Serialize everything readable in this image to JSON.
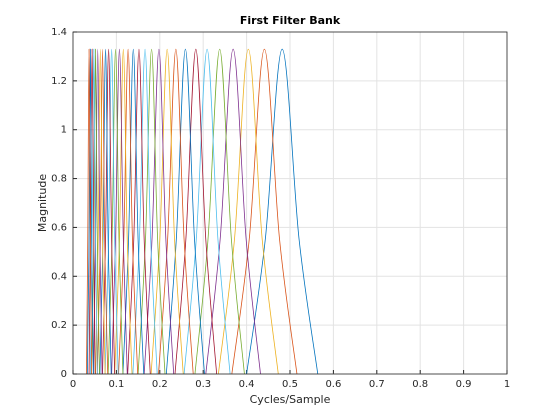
{
  "chart_data": {
    "type": "line",
    "title": "First Filter Bank",
    "xlabel": "Cycles/Sample",
    "ylabel": "Magnitude",
    "xlim": [
      0,
      1
    ],
    "xticks": [
      0,
      0.1,
      0.2,
      0.3,
      0.4,
      0.5,
      0.6,
      0.7,
      0.8,
      0.9,
      1
    ],
    "ylim": [
      0,
      1.4
    ],
    "yticks": [
      0,
      0.2,
      0.4,
      0.6,
      0.8,
      1,
      1.2,
      1.4
    ],
    "grid": true,
    "series": [
      {
        "color": "#0072BD",
        "x": [
          0.4,
          0.443,
          0.482,
          0.521,
          0.564
        ],
        "values": [
          0,
          0.55,
          1.33,
          0.55,
          0
        ]
      },
      {
        "color": "#D95319",
        "x": [
          0.366,
          0.406,
          0.441,
          0.476,
          0.516
        ],
        "values": [
          0,
          0.55,
          1.33,
          0.55,
          0
        ]
      },
      {
        "color": "#EDB120",
        "x": [
          0.335,
          0.372,
          0.404,
          0.436,
          0.473
        ],
        "values": [
          0,
          0.55,
          1.33,
          0.55,
          0
        ]
      },
      {
        "color": "#7E2F8E",
        "x": [
          0.306,
          0.339,
          0.369,
          0.399,
          0.432
        ],
        "values": [
          0,
          0.55,
          1.33,
          0.55,
          0
        ]
      },
      {
        "color": "#77AC30",
        "x": [
          0.281,
          0.311,
          0.338,
          0.365,
          0.395
        ],
        "values": [
          0,
          0.55,
          1.33,
          0.55,
          0
        ]
      },
      {
        "color": "#4DBEEE",
        "x": [
          0.256,
          0.284,
          0.309,
          0.334,
          0.362
        ],
        "values": [
          0,
          0.55,
          1.33,
          0.55,
          0
        ]
      },
      {
        "color": "#A2142F",
        "x": [
          0.235,
          0.26,
          0.283,
          0.306,
          0.331
        ],
        "values": [
          0,
          0.55,
          1.33,
          0.55,
          0
        ]
      },
      {
        "color": "#0072BD",
        "x": [
          0.215,
          0.238,
          0.259,
          0.28,
          0.303
        ],
        "values": [
          0,
          0.55,
          1.33,
          0.55,
          0
        ]
      },
      {
        "color": "#D95319",
        "x": [
          0.197,
          0.218,
          0.237,
          0.256,
          0.277
        ],
        "values": [
          0,
          0.55,
          1.33,
          0.55,
          0
        ]
      },
      {
        "color": "#EDB120",
        "x": [
          0.18,
          0.2,
          0.217,
          0.234,
          0.254
        ],
        "values": [
          0,
          0.55,
          1.33,
          0.55,
          0
        ]
      },
      {
        "color": "#7E2F8E",
        "x": [
          0.164,
          0.182,
          0.198,
          0.214,
          0.232
        ],
        "values": [
          0,
          0.55,
          1.33,
          0.55,
          0
        ]
      },
      {
        "color": "#77AC30",
        "x": [
          0.15,
          0.167,
          0.181,
          0.195,
          0.212
        ],
        "values": [
          0,
          0.55,
          1.33,
          0.55,
          0
        ]
      },
      {
        "color": "#4DBEEE",
        "x": [
          0.138,
          0.153,
          0.166,
          0.179,
          0.194
        ],
        "values": [
          0,
          0.55,
          1.33,
          0.55,
          0
        ]
      },
      {
        "color": "#A2142F",
        "x": [
          0.126,
          0.14,
          0.152,
          0.164,
          0.178
        ],
        "values": [
          0,
          0.55,
          1.33,
          0.55,
          0
        ]
      },
      {
        "color": "#0072BD",
        "x": [
          0.115,
          0.128,
          0.139,
          0.15,
          0.163
        ],
        "values": [
          0,
          0.55,
          1.33,
          0.55,
          0
        ]
      },
      {
        "color": "#D95319",
        "x": [
          0.105,
          0.117,
          0.127,
          0.137,
          0.149
        ],
        "values": [
          0,
          0.55,
          1.33,
          0.55,
          0
        ]
      },
      {
        "color": "#EDB120",
        "x": [
          0.096,
          0.107,
          0.116,
          0.125,
          0.136
        ],
        "values": [
          0,
          0.55,
          1.33,
          0.55,
          0
        ]
      },
      {
        "color": "#7E2F8E",
        "x": [
          0.089,
          0.098,
          0.107,
          0.116,
          0.125
        ],
        "values": [
          0,
          0.55,
          1.33,
          0.55,
          0
        ]
      },
      {
        "color": "#77AC30",
        "x": [
          0.081,
          0.09,
          0.098,
          0.106,
          0.115
        ],
        "values": [
          0,
          0.55,
          1.33,
          0.55,
          0
        ]
      },
      {
        "color": "#4DBEEE",
        "x": [
          0.074,
          0.082,
          0.089,
          0.096,
          0.104
        ],
        "values": [
          0,
          0.55,
          1.33,
          0.55,
          0
        ]
      },
      {
        "color": "#A2142F",
        "x": [
          0.068,
          0.075,
          0.082,
          0.089,
          0.096
        ],
        "values": [
          0,
          0.55,
          1.33,
          0.55,
          0
        ]
      },
      {
        "color": "#0072BD",
        "x": [
          0.062,
          0.069,
          0.075,
          0.081,
          0.088
        ],
        "values": [
          0,
          0.55,
          1.33,
          0.55,
          0
        ]
      },
      {
        "color": "#D95319",
        "x": [
          0.056,
          0.063,
          0.068,
          0.073,
          0.08
        ],
        "values": [
          0,
          0.55,
          1.33,
          0.55,
          0
        ]
      },
      {
        "color": "#EDB120",
        "x": [
          0.052,
          0.058,
          0.063,
          0.068,
          0.074
        ],
        "values": [
          0,
          0.55,
          1.33,
          0.55,
          0
        ]
      },
      {
        "color": "#7E2F8E",
        "x": [
          0.047,
          0.052,
          0.057,
          0.062,
          0.067
        ],
        "values": [
          0,
          0.55,
          1.33,
          0.55,
          0
        ]
      },
      {
        "color": "#77AC30",
        "x": [
          0.043,
          0.048,
          0.052,
          0.056,
          0.061
        ],
        "values": [
          0,
          0.55,
          1.33,
          0.55,
          0
        ]
      },
      {
        "color": "#4DBEEE",
        "x": [
          0.04,
          0.044,
          0.048,
          0.052,
          0.056
        ],
        "values": [
          0,
          0.55,
          1.33,
          0.55,
          0
        ]
      },
      {
        "color": "#A2142F",
        "x": [
          0.037,
          0.04,
          0.044,
          0.048,
          0.051
        ],
        "values": [
          0,
          0.55,
          1.33,
          0.55,
          0
        ]
      },
      {
        "color": "#0072BD",
        "x": [
          0.033,
          0.037,
          0.04,
          0.043,
          0.047
        ],
        "values": [
          0,
          0.55,
          1.33,
          0.55,
          0
        ]
      },
      {
        "color": "#D95319",
        "x": [
          0.031,
          0.034,
          0.037,
          0.04,
          0.043
        ],
        "values": [
          0,
          0.55,
          1.33,
          0.55,
          0
        ]
      }
    ]
  }
}
